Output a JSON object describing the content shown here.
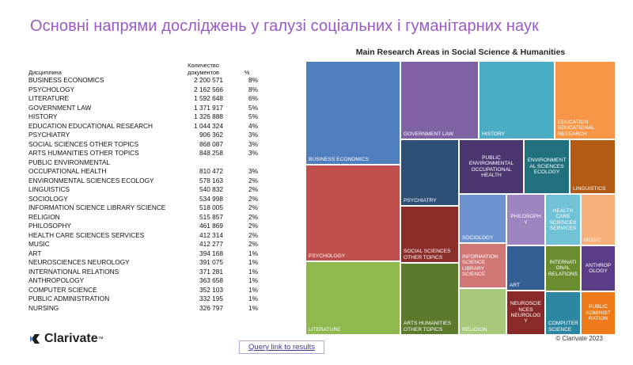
{
  "title": "Основні напрями досліджень у галузі соціальних і гуманітарних наук",
  "table": {
    "headers": {
      "discipline": "Дисциплина",
      "count": "Количество\nдокументов",
      "percent": "%"
    },
    "rows": [
      {
        "name": "BUSINESS ECONOMICS",
        "count": "2 200 571",
        "pct": "8%"
      },
      {
        "name": "PSYCHOLOGY",
        "count": "2 162 566",
        "pct": "8%"
      },
      {
        "name": "LITERATURE",
        "count": "1 592 648",
        "pct": "6%"
      },
      {
        "name": "GOVERNMENT LAW",
        "count": "1 371 917",
        "pct": "5%"
      },
      {
        "name": "HISTORY",
        "count": "1 326 888",
        "pct": "5%"
      },
      {
        "name": "EDUCATION EDUCATIONAL RESEARCH",
        "count": "1 044 324",
        "pct": "4%"
      },
      {
        "name": "PSYCHIATRY",
        "count": "906 362",
        "pct": "3%"
      },
      {
        "name": "SOCIAL SCIENCES OTHER TOPICS",
        "count": "868 087",
        "pct": "3%"
      },
      {
        "name": "ARTS HUMANITIES OTHER TOPICS",
        "count": "848 258",
        "pct": "3%"
      },
      {
        "name": "PUBLIC ENVIRONMENTAL\nOCCUPATIONAL HEALTH",
        "count": "810 472",
        "pct": "3%"
      },
      {
        "name": "ENVIRONMENTAL SCIENCES ECOLOGY",
        "count": "578 163",
        "pct": "2%"
      },
      {
        "name": "LINGUISTICS",
        "count": "540 832",
        "pct": "2%"
      },
      {
        "name": "SOCIOLOGY",
        "count": "534 998",
        "pct": "2%"
      },
      {
        "name": "INFORMATION SCIENCE LIBRARY SCIENCE",
        "count": "518 005",
        "pct": "2%"
      },
      {
        "name": "RELIGION",
        "count": "515 857",
        "pct": "2%"
      },
      {
        "name": "PHILOSOPHY",
        "count": "461 869",
        "pct": "2%"
      },
      {
        "name": "HEALTH CARE SCIENCES SERVICES",
        "count": "412 314",
        "pct": "2%"
      },
      {
        "name": "MUSIC",
        "count": "412 277",
        "pct": "2%"
      },
      {
        "name": "ART",
        "count": "394 168",
        "pct": "1%"
      },
      {
        "name": "NEUROSCIENCES NEUROLOGY",
        "count": "391 075",
        "pct": "1%"
      },
      {
        "name": "INTERNATIONAL RELATIONS",
        "count": "371 281",
        "pct": "1%"
      },
      {
        "name": "ANTHROPOLOGY",
        "count": "363 658",
        "pct": "1%"
      },
      {
        "name": "COMPUTER SCIENCE",
        "count": "352 103",
        "pct": "1%"
      },
      {
        "name": "PUBLIC ADMINISTRATION",
        "count": "332 195",
        "pct": "1%"
      },
      {
        "name": "NURSING",
        "count": "326 797",
        "pct": "1%"
      }
    ]
  },
  "logo": {
    "text": "Clarivate",
    "tm": "™",
    "icon": "clarivate-logo-icon"
  },
  "query_link": "Query link to results",
  "chart": {
    "title": "Main Research Areas in Social Science & Humanities",
    "copyright": "© Clarivate 2023",
    "cells": [
      {
        "label": "BUSINESS ECONOMICS",
        "color": "#4f7fbf",
        "align": "bottom"
      },
      {
        "label": "PSYCHOLOGY",
        "color": "#c0504d",
        "align": "bottom"
      },
      {
        "label": "LITERATURE",
        "color": "#8fb84d",
        "align": "bottom"
      },
      {
        "label": "GOVERNMENT LAW",
        "color": "#7f62a3",
        "align": "bottom"
      },
      {
        "label": "HISTORY",
        "color": "#4bacc6",
        "align": "bottom"
      },
      {
        "label": "EDUCATION\nEDUCATIONAL\nRESEARCH",
        "color": "#f79646",
        "align": "bottom"
      },
      {
        "label": "PSYCHIATRY",
        "color": "#2d4f75",
        "align": "bottom"
      },
      {
        "label": "SOCIAL SCIENCES\nOTHER TOPICS",
        "color": "#8b2e2a",
        "align": "bottom"
      },
      {
        "label": "ARTS HUMANITIES\nOTHER TOPICS",
        "color": "#5c7a2c",
        "align": "bottom"
      },
      {
        "label": "PUBLIC\nENVIRONMENTAL\nOCCUPATIONAL\nHEALTH",
        "color": "#4b3770",
        "align": "center"
      },
      {
        "label": "ENVIRONMENT\nAL SCIENCES\nECOLOGY",
        "color": "#21707e",
        "align": "center"
      },
      {
        "label": "LINGUISTICS",
        "color": "#b35a14",
        "align": "bottom"
      },
      {
        "label": "SOCIOLOGY",
        "color": "#6c93cf",
        "align": "bottom"
      },
      {
        "label": "INFORMATION\nSCIENCE\nLIBRARY\nSCIENCE",
        "color": "#d07775",
        "align": "mid-left"
      },
      {
        "label": "RELIGION",
        "color": "#a8c97c",
        "align": "bottom"
      },
      {
        "label": "PHILOSOPH\nY",
        "color": "#9e85c2",
        "align": "center"
      },
      {
        "label": "HEALTH\nCARE\nSCIENCES\nSERVICES",
        "color": "#70c2d7",
        "align": "center"
      },
      {
        "label": "MUSIC",
        "color": "#f8b07a",
        "align": "bottom"
      },
      {
        "label": "ART",
        "color": "#345f95",
        "align": "bottom"
      },
      {
        "label": "NEUROSCIE\nNCES\nNEUROLOG\nY",
        "color": "#8a2a28",
        "align": "center"
      },
      {
        "label": "INTERNATI\nONAL\nRELATIONS",
        "color": "#6a8d30",
        "align": "center"
      },
      {
        "label": "ANTHROP\nOLOGY",
        "color": "#5a3d86",
        "align": "center"
      },
      {
        "label": "COMPUTER\nSCIENCE",
        "color": "#2e87a0",
        "align": "bottom"
      },
      {
        "label": "PUBLIC\nADMINIST\nRATION",
        "color": "#ee7a1a",
        "align": "center"
      }
    ]
  }
}
